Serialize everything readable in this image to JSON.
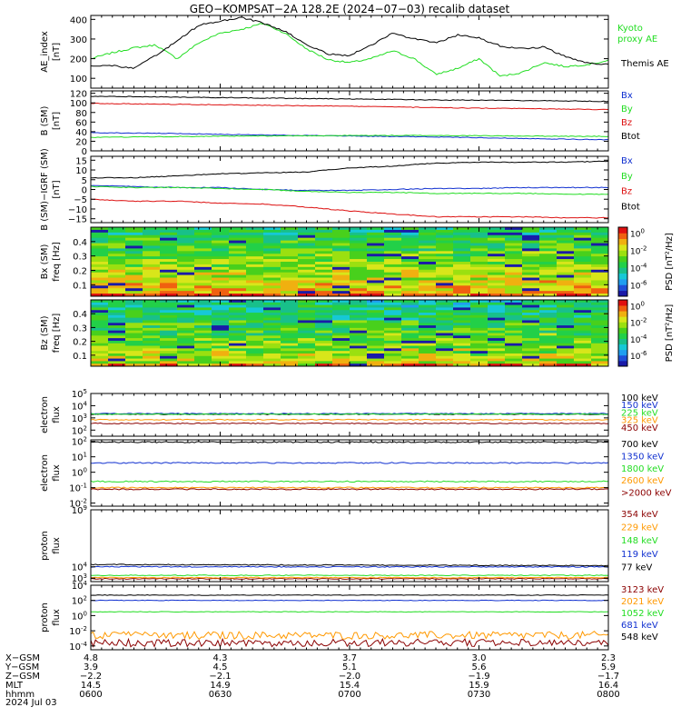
{
  "title": "GEO−KOMPSAT−2A 128.2E (2024−07−03) recalib dataset",
  "colors": {
    "black": "#000000",
    "blue": "#1030d0",
    "green": "#22dd22",
    "red": "#dd1111",
    "orange": "#ff9900",
    "darkred": "#8b0000",
    "navy": "#1a2fb8"
  },
  "x_axis": {
    "rows": [
      {
        "label": "X−GSM",
        "values": [
          "4.8",
          "4.3",
          "3.7",
          "3.0",
          "2.3"
        ]
      },
      {
        "label": "Y−GSM",
        "values": [
          "3.9",
          "4.5",
          "5.1",
          "5.6",
          "5.9"
        ]
      },
      {
        "label": "Z−GSM",
        "values": [
          "−2.2",
          "−2.1",
          "−2.0",
          "−1.9",
          "−1.7"
        ]
      },
      {
        "label": "MLT",
        "values": [
          "14.5",
          "14.9",
          "15.4",
          "15.9",
          "16.4"
        ]
      },
      {
        "label": "hhmm",
        "values": [
          "0600",
          "0630",
          "0700",
          "0730",
          "0800"
        ]
      }
    ],
    "date": "2024 Jul 03"
  },
  "chart_data": [
    {
      "type": "line",
      "ylabel": [
        "AE_index",
        "[nT]"
      ],
      "ylim": [
        50,
        420
      ],
      "yticks": [
        {
          "v": 100,
          "t": "100"
        },
        {
          "v": 200,
          "t": "200"
        },
        {
          "v": 300,
          "t": "300"
        },
        {
          "v": 400,
          "t": "400"
        }
      ],
      "x": [
        0,
        5,
        10,
        15,
        20,
        25,
        30,
        35,
        40,
        45,
        50,
        55,
        60,
        65,
        70,
        75,
        80,
        85,
        90,
        95,
        100,
        105,
        110,
        115,
        120
      ],
      "series": [
        {
          "name": "Kyoto proxy AE",
          "label_lines": [
            "Kyoto",
            "proxy AE"
          ],
          "color": "green",
          "values": [
            200,
            230,
            255,
            270,
            200,
            280,
            330,
            350,
            380,
            330,
            250,
            195,
            180,
            200,
            240,
            200,
            120,
            150,
            200,
            110,
            130,
            180,
            160,
            170,
            190
          ]
        },
        {
          "name": "Themis AE",
          "label_lines": [
            "Themis AE"
          ],
          "color": "black",
          "values": [
            165,
            165,
            150,
            215,
            290,
            370,
            390,
            410,
            380,
            340,
            270,
            225,
            215,
            270,
            330,
            300,
            280,
            320,
            305,
            265,
            250,
            260,
            210,
            180,
            170
          ]
        }
      ]
    },
    {
      "type": "line",
      "ylabel": [
        "B (SM)",
        "[nT]"
      ],
      "ylim": [
        0,
        125
      ],
      "yticks": [
        {
          "v": 0,
          "t": "0"
        },
        {
          "v": 20,
          "t": "20"
        },
        {
          "v": 40,
          "t": "40"
        },
        {
          "v": 60,
          "t": "60"
        },
        {
          "v": 80,
          "t": "80"
        },
        {
          "v": 100,
          "t": "100"
        },
        {
          "v": 120,
          "t": "120"
        }
      ],
      "x": [
        0,
        20,
        40,
        60,
        80,
        100,
        120
      ],
      "series": [
        {
          "name": "Bx",
          "label_lines": [
            "Bx"
          ],
          "color": "blue",
          "values": [
            38,
            36,
            33,
            31,
            29,
            26,
            23
          ]
        },
        {
          "name": "By",
          "label_lines": [
            "By"
          ],
          "color": "green",
          "values": [
            28,
            30,
            31,
            32,
            32,
            31,
            30
          ]
        },
        {
          "name": "Bz",
          "label_lines": [
            "Bz"
          ],
          "color": "red",
          "values": [
            99,
            97,
            95,
            93,
            90,
            88,
            86
          ]
        },
        {
          "name": "Btot",
          "label_lines": [
            "Btot"
          ],
          "color": "black",
          "values": [
            114,
            112,
            110,
            108,
            106,
            105,
            103
          ]
        }
      ]
    },
    {
      "type": "line",
      "ylabel": [
        "B (SM)−IGRF (SM)",
        "[nT]"
      ],
      "ylim": [
        -17,
        17
      ],
      "yticks": [
        {
          "v": -15,
          "t": "−15"
        },
        {
          "v": -10,
          "t": "−10"
        },
        {
          "v": -5,
          "t": "−5"
        },
        {
          "v": 0,
          "t": "0"
        },
        {
          "v": 5,
          "t": "5"
        },
        {
          "v": 10,
          "t": "10"
        },
        {
          "v": 15,
          "t": "15"
        }
      ],
      "x": [
        0,
        10,
        20,
        30,
        40,
        50,
        60,
        70,
        80,
        90,
        100,
        110,
        120
      ],
      "series": [
        {
          "name": "Bx",
          "label_lines": [
            "Bx"
          ],
          "color": "blue",
          "values": [
            2,
            1.5,
            1,
            1,
            0,
            -0.5,
            -0.5,
            0,
            0.5,
            0.5,
            1,
            1,
            1
          ]
        },
        {
          "name": "By",
          "label_lines": [
            "By"
          ],
          "color": "green",
          "values": [
            1.5,
            1,
            1,
            0.5,
            0,
            -1,
            -1.5,
            -1.5,
            -2,
            -2,
            -2,
            -2.5,
            -2.5
          ]
        },
        {
          "name": "Bz",
          "label_lines": [
            "Bz"
          ],
          "color": "red",
          "values": [
            -5,
            -6,
            -6,
            -7,
            -7.5,
            -9,
            -11,
            -12.5,
            -14,
            -14,
            -14,
            -14.5,
            -14.5
          ]
        },
        {
          "name": "Btot",
          "label_lines": [
            "Btot"
          ],
          "color": "black",
          "values": [
            6,
            6,
            7,
            8,
            8.5,
            9,
            11,
            12,
            13.5,
            14,
            14,
            14,
            14.5
          ]
        }
      ]
    },
    {
      "type": "heatmap",
      "ylabel": [
        "Bx (SM)",
        "freq [Hz]"
      ],
      "ylim": [
        0.02,
        0.5
      ],
      "yticks": [
        {
          "v": 0.1,
          "t": "0.1"
        },
        {
          "v": 0.2,
          "t": "0.2"
        },
        {
          "v": 0.3,
          "t": "0.3"
        },
        {
          "v": 0.4,
          "t": "0.4"
        }
      ],
      "colorbar": {
        "label": "PSD [nT²/Hz]",
        "ticks": [
          {
            "f": 0.9,
            "t": "10^0"
          },
          {
            "f": 0.65,
            "t": "10^-2"
          },
          {
            "f": 0.4,
            "t": "10^-4"
          },
          {
            "f": 0.15,
            "t": "10^-6"
          }
        ]
      }
    },
    {
      "type": "heatmap",
      "ylabel": [
        "Bz (SM)",
        "freq [Hz]"
      ],
      "ylim": [
        0.02,
        0.5
      ],
      "yticks": [
        {
          "v": 0.1,
          "t": "0.1"
        },
        {
          "v": 0.2,
          "t": "0.2"
        },
        {
          "v": 0.3,
          "t": "0.3"
        },
        {
          "v": 0.4,
          "t": "0.4"
        }
      ],
      "colorbar": {
        "label": "PSD [nT²/Hz]",
        "ticks": [
          {
            "f": 0.9,
            "t": "10^0"
          },
          {
            "f": 0.65,
            "t": "10^-2"
          },
          {
            "f": 0.4,
            "t": "10^-4"
          },
          {
            "f": 0.15,
            "t": "10^-6"
          }
        ]
      }
    },
    {
      "type": "line",
      "log": true,
      "ylabel": [
        "electron",
        "flux"
      ],
      "ylim": [
        1.5,
        5
      ],
      "yticks": [
        {
          "v": 2,
          "t": "10^2"
        },
        {
          "v": 3,
          "t": "10^3"
        },
        {
          "v": 4,
          "t": "10^4"
        },
        {
          "v": 5,
          "t": "10^5"
        }
      ],
      "x": [
        0,
        120
      ],
      "series": [
        {
          "name": "100 keV",
          "label_lines": [
            "100 keV"
          ],
          "color": "black",
          "values": [
            3.3,
            3.3
          ]
        },
        {
          "name": "150 keV",
          "label_lines": [
            "150 keV"
          ],
          "color": "blue",
          "values": [
            3.35,
            3.35
          ]
        },
        {
          "name": "225 keV",
          "label_lines": [
            "225 keV"
          ],
          "color": "green",
          "values": [
            3.3,
            3.3
          ]
        },
        {
          "name": "325 keV",
          "label_lines": [
            "325 keV"
          ],
          "color": "orange",
          "values": [
            2.85,
            2.85
          ]
        },
        {
          "name": "450 keV",
          "label_lines": [
            "450 keV"
          ],
          "color": "darkred",
          "values": [
            2.55,
            2.55
          ]
        }
      ]
    },
    {
      "type": "line",
      "log": true,
      "ylabel": [
        "electron",
        "flux"
      ],
      "ylim": [
        -2.2,
        2.1
      ],
      "yticks": [
        {
          "v": -2,
          "t": "10^-2"
        },
        {
          "v": -1,
          "t": "10^-1"
        },
        {
          "v": 0,
          "t": "10^0"
        },
        {
          "v": 1,
          "t": "10^1"
        },
        {
          "v": 2,
          "t": "10^2"
        }
      ],
      "x": [
        0,
        120
      ],
      "series": [
        {
          "name": "700 keV",
          "label_lines": [
            "700 keV"
          ],
          "color": "black",
          "values": [
            1.95,
            1.95
          ]
        },
        {
          "name": "1350 keV",
          "label_lines": [
            "1350 keV"
          ],
          "color": "blue",
          "values": [
            0.6,
            0.6
          ]
        },
        {
          "name": "1800 keV",
          "label_lines": [
            "1800 keV"
          ],
          "color": "green",
          "values": [
            -0.6,
            -0.6
          ]
        },
        {
          "name": "2600 keV",
          "label_lines": [
            "2600 keV"
          ],
          "color": "orange",
          "values": [
            -1.0,
            -1.0
          ]
        },
        {
          "name": ">2000 keV",
          "label_lines": [
            ">2000 keV"
          ],
          "color": "darkred",
          "values": [
            -1.1,
            -1.1
          ]
        }
      ]
    },
    {
      "type": "line",
      "log": true,
      "ylabel": [
        "proton",
        "flux"
      ],
      "ylim": [
        2.7,
        9
      ],
      "yticks": [
        {
          "v": 3,
          "t": "10^3"
        },
        {
          "v": 4,
          "t": "10^4"
        },
        {
          "v": 9,
          "t": "10^9"
        }
      ],
      "x": [
        0,
        120
      ],
      "series": [
        {
          "name": "354 keV",
          "label_lines": [
            "354 keV"
          ],
          "color": "darkred",
          "values": [
            2.95,
            2.95
          ]
        },
        {
          "name": "229 keV",
          "label_lines": [
            "229 keV"
          ],
          "color": "orange",
          "values": [
            3.05,
            3.05
          ]
        },
        {
          "name": "148 keV",
          "label_lines": [
            "148 keV"
          ],
          "color": "green",
          "values": [
            3.25,
            3.25
          ]
        },
        {
          "name": "119 keV",
          "label_lines": [
            "119 keV"
          ],
          "color": "blue",
          "values": [
            4.0,
            4.0
          ]
        },
        {
          "name": "77 keV",
          "label_lines": [
            "77 keV"
          ],
          "color": "black",
          "values": [
            4.2,
            4.1
          ]
        }
      ]
    },
    {
      "type": "line",
      "log": true,
      "ylabel": [
        "proton",
        "flux"
      ],
      "ylim": [
        -4.5,
        4
      ],
      "yticks": [
        {
          "v": -4,
          "t": "10^-4"
        },
        {
          "v": -2,
          "t": "10^-2"
        },
        {
          "v": 0,
          "t": "10^0"
        },
        {
          "v": 2,
          "t": "10^2"
        },
        {
          "v": 4,
          "t": "10^4"
        }
      ],
      "x": [
        0,
        120
      ],
      "series": [
        {
          "name": "3123 keV",
          "label_lines": [
            "3123 keV"
          ],
          "color": "darkred",
          "values": [
            -3.6,
            -3.6
          ]
        },
        {
          "name": "2021 keV",
          "label_lines": [
            "2021 keV"
          ],
          "color": "orange",
          "values": [
            -2.6,
            -2.6
          ]
        },
        {
          "name": "1052 keV",
          "label_lines": [
            "1052 keV"
          ],
          "color": "green",
          "values": [
            0.5,
            0.5
          ]
        },
        {
          "name": "681 keV",
          "label_lines": [
            "681 keV"
          ],
          "color": "blue",
          "values": [
            2.0,
            2.0
          ]
        },
        {
          "name": "548 keV",
          "label_lines": [
            "548 keV"
          ],
          "color": "black",
          "values": [
            2.7,
            2.7
          ]
        }
      ]
    }
  ]
}
